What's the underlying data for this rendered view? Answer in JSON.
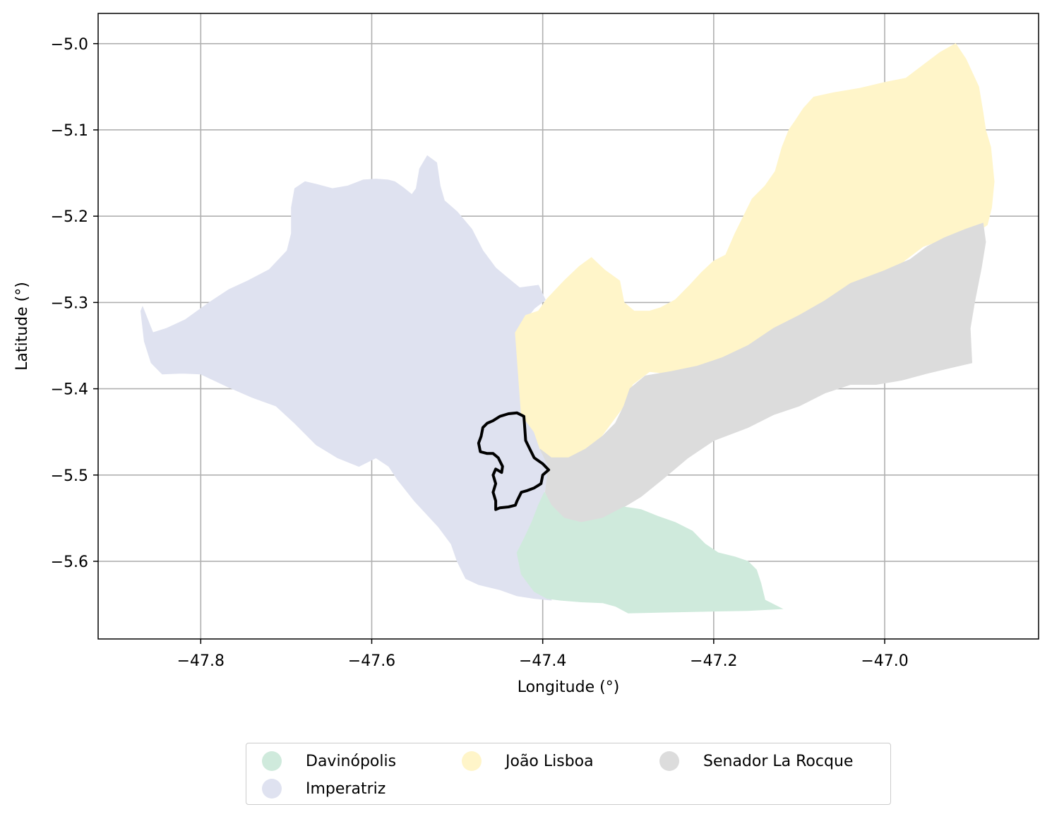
{
  "chart_data": {
    "type": "map",
    "xlabel": "Longitude (°)",
    "ylabel": "Latitude (°)",
    "xlim": [
      -47.92,
      -46.82
    ],
    "ylim": [
      -5.69,
      -4.965
    ],
    "x_ticks": [
      -47.8,
      -47.6,
      -47.4,
      -47.2,
      -47.0
    ],
    "x_tick_labels": [
      "−47.8",
      "−47.6",
      "−47.4",
      "−47.2",
      "−47.0"
    ],
    "y_ticks": [
      -5.0,
      -5.1,
      -5.2,
      -5.3,
      -5.4,
      -5.5,
      -5.6
    ],
    "y_tick_labels": [
      "−5.0",
      "−5.1",
      "−5.2",
      "−5.3",
      "−5.4",
      "−5.5",
      "−5.6"
    ],
    "grid": true,
    "legend_placement": "bottom-center",
    "regions": [
      {
        "name": "Imperatriz",
        "color": "#dfe2f0",
        "outline": [
          [
            -47.868,
            -5.305
          ],
          [
            -47.856,
            -5.335
          ],
          [
            -47.84,
            -5.33
          ],
          [
            -47.818,
            -5.32
          ],
          [
            -47.79,
            -5.3
          ],
          [
            -47.767,
            -5.285
          ],
          [
            -47.745,
            -5.275
          ],
          [
            -47.72,
            -5.262
          ],
          [
            -47.699,
            -5.24
          ],
          [
            -47.694,
            -5.22
          ],
          [
            -47.694,
            -5.19
          ],
          [
            -47.69,
            -5.168
          ],
          [
            -47.678,
            -5.16
          ],
          [
            -47.665,
            -5.163
          ],
          [
            -47.646,
            -5.168
          ],
          [
            -47.628,
            -5.165
          ],
          [
            -47.61,
            -5.158
          ],
          [
            -47.595,
            -5.157
          ],
          [
            -47.581,
            -5.158
          ],
          [
            -47.573,
            -5.16
          ],
          [
            -47.563,
            -5.167
          ],
          [
            -47.553,
            -5.175
          ],
          [
            -47.548,
            -5.168
          ],
          [
            -47.544,
            -5.145
          ],
          [
            -47.535,
            -5.13
          ],
          [
            -47.524,
            -5.138
          ],
          [
            -47.52,
            -5.165
          ],
          [
            -47.515,
            -5.182
          ],
          [
            -47.5,
            -5.195
          ],
          [
            -47.483,
            -5.215
          ],
          [
            -47.47,
            -5.24
          ],
          [
            -47.455,
            -5.26
          ],
          [
            -47.443,
            -5.27
          ],
          [
            -47.427,
            -5.283
          ],
          [
            -47.405,
            -5.28
          ],
          [
            -47.397,
            -5.297
          ],
          [
            -47.41,
            -5.307
          ],
          [
            -47.432,
            -5.335
          ],
          [
            -47.428,
            -5.39
          ],
          [
            -47.425,
            -5.43
          ],
          [
            -47.41,
            -5.45
          ],
          [
            -47.403,
            -5.47
          ],
          [
            -47.393,
            -5.49
          ],
          [
            -47.398,
            -5.52
          ],
          [
            -47.4,
            -5.56
          ],
          [
            -47.395,
            -5.62
          ],
          [
            -47.39,
            -5.645
          ],
          [
            -47.41,
            -5.643
          ],
          [
            -47.43,
            -5.64
          ],
          [
            -47.45,
            -5.633
          ],
          [
            -47.475,
            -5.627
          ],
          [
            -47.49,
            -5.62
          ],
          [
            -47.5,
            -5.6
          ],
          [
            -47.507,
            -5.58
          ],
          [
            -47.522,
            -5.56
          ],
          [
            -47.55,
            -5.53
          ],
          [
            -47.57,
            -5.505
          ],
          [
            -47.58,
            -5.49
          ],
          [
            -47.595,
            -5.48
          ],
          [
            -47.615,
            -5.49
          ],
          [
            -47.64,
            -5.48
          ],
          [
            -47.665,
            -5.465
          ],
          [
            -47.69,
            -5.44
          ],
          [
            -47.712,
            -5.42
          ],
          [
            -47.74,
            -5.41
          ],
          [
            -47.77,
            -5.397
          ],
          [
            -47.8,
            -5.383
          ],
          [
            -47.822,
            -5.382
          ],
          [
            -47.845,
            -5.383
          ],
          [
            -47.858,
            -5.37
          ],
          [
            -47.866,
            -5.345
          ],
          [
            -47.87,
            -5.31
          ]
        ]
      },
      {
        "name": "João Lisboa",
        "color": "#fff5c9",
        "outline": [
          [
            -47.432,
            -5.335
          ],
          [
            -47.42,
            -5.315
          ],
          [
            -47.405,
            -5.31
          ],
          [
            -47.395,
            -5.296
          ],
          [
            -47.375,
            -5.275
          ],
          [
            -47.357,
            -5.258
          ],
          [
            -47.343,
            -5.248
          ],
          [
            -47.328,
            -5.262
          ],
          [
            -47.31,
            -5.275
          ],
          [
            -47.305,
            -5.3
          ],
          [
            -47.293,
            -5.31
          ],
          [
            -47.275,
            -5.31
          ],
          [
            -47.262,
            -5.306
          ],
          [
            -47.245,
            -5.297
          ],
          [
            -47.228,
            -5.28
          ],
          [
            -47.214,
            -5.265
          ],
          [
            -47.2,
            -5.252
          ],
          [
            -47.186,
            -5.245
          ],
          [
            -47.175,
            -5.22
          ],
          [
            -47.165,
            -5.2
          ],
          [
            -47.155,
            -5.18
          ],
          [
            -47.14,
            -5.165
          ],
          [
            -47.128,
            -5.148
          ],
          [
            -47.12,
            -5.12
          ],
          [
            -47.112,
            -5.1
          ],
          [
            -47.105,
            -5.09
          ],
          [
            -47.095,
            -5.075
          ],
          [
            -47.083,
            -5.062
          ],
          [
            -47.06,
            -5.057
          ],
          [
            -47.03,
            -5.052
          ],
          [
            -47.0,
            -5.045
          ],
          [
            -46.975,
            -5.04
          ],
          [
            -46.955,
            -5.025
          ],
          [
            -46.935,
            -5.01
          ],
          [
            -46.917,
            -5.0
          ],
          [
            -46.905,
            -5.018
          ],
          [
            -46.89,
            -5.05
          ],
          [
            -46.885,
            -5.08
          ],
          [
            -46.882,
            -5.1
          ],
          [
            -46.876,
            -5.12
          ],
          [
            -46.872,
            -5.16
          ],
          [
            -46.875,
            -5.19
          ],
          [
            -46.88,
            -5.21
          ],
          [
            -46.895,
            -5.22
          ],
          [
            -46.92,
            -5.225
          ],
          [
            -46.94,
            -5.23
          ],
          [
            -46.955,
            -5.235
          ],
          [
            -46.975,
            -5.25
          ],
          [
            -47.0,
            -5.272
          ],
          [
            -47.025,
            -5.29
          ],
          [
            -47.05,
            -5.307
          ],
          [
            -47.07,
            -5.32
          ],
          [
            -47.095,
            -5.335
          ],
          [
            -47.12,
            -5.35
          ],
          [
            -47.15,
            -5.37
          ],
          [
            -47.19,
            -5.38
          ],
          [
            -47.23,
            -5.385
          ],
          [
            -47.275,
            -5.38
          ],
          [
            -47.295,
            -5.395
          ],
          [
            -47.305,
            -5.42
          ],
          [
            -47.32,
            -5.44
          ],
          [
            -47.335,
            -5.46
          ],
          [
            -47.355,
            -5.475
          ],
          [
            -47.37,
            -5.48
          ],
          [
            -47.385,
            -5.485
          ],
          [
            -47.403,
            -5.47
          ],
          [
            -47.41,
            -5.45
          ],
          [
            -47.425,
            -5.43
          ],
          [
            -47.428,
            -5.39
          ]
        ]
      },
      {
        "name": "Senador La Rocque",
        "color": "#dcdcdc",
        "outline": [
          [
            -47.403,
            -5.47
          ],
          [
            -47.39,
            -5.48
          ],
          [
            -47.37,
            -5.48
          ],
          [
            -47.35,
            -5.47
          ],
          [
            -47.33,
            -5.455
          ],
          [
            -47.315,
            -5.44
          ],
          [
            -47.305,
            -5.42
          ],
          [
            -47.298,
            -5.4
          ],
          [
            -47.28,
            -5.385
          ],
          [
            -47.25,
            -5.38
          ],
          [
            -47.22,
            -5.374
          ],
          [
            -47.19,
            -5.364
          ],
          [
            -47.16,
            -5.35
          ],
          [
            -47.13,
            -5.33
          ],
          [
            -47.1,
            -5.315
          ],
          [
            -47.07,
            -5.298
          ],
          [
            -47.04,
            -5.278
          ],
          [
            -47.0,
            -5.263
          ],
          [
            -46.97,
            -5.25
          ],
          [
            -46.95,
            -5.235
          ],
          [
            -46.93,
            -5.225
          ],
          [
            -46.905,
            -5.215
          ],
          [
            -46.885,
            -5.208
          ],
          [
            -46.882,
            -5.23
          ],
          [
            -46.887,
            -5.26
          ],
          [
            -46.895,
            -5.3
          ],
          [
            -46.9,
            -5.33
          ],
          [
            -46.898,
            -5.37
          ],
          [
            -46.92,
            -5.375
          ],
          [
            -46.95,
            -5.382
          ],
          [
            -46.98,
            -5.39
          ],
          [
            -47.01,
            -5.395
          ],
          [
            -47.04,
            -5.395
          ],
          [
            -47.07,
            -5.405
          ],
          [
            -47.1,
            -5.42
          ],
          [
            -47.13,
            -5.43
          ],
          [
            -47.16,
            -5.445
          ],
          [
            -47.2,
            -5.46
          ],
          [
            -47.23,
            -5.48
          ],
          [
            -47.26,
            -5.505
          ],
          [
            -47.285,
            -5.525
          ],
          [
            -47.305,
            -5.537
          ],
          [
            -47.33,
            -5.55
          ],
          [
            -47.355,
            -5.555
          ],
          [
            -47.375,
            -5.55
          ],
          [
            -47.39,
            -5.535
          ],
          [
            -47.397,
            -5.52
          ],
          [
            -47.393,
            -5.49
          ]
        ]
      },
      {
        "name": "Davinópolis",
        "color": "#cfeadc",
        "outline": [
          [
            -47.398,
            -5.52
          ],
          [
            -47.39,
            -5.535
          ],
          [
            -47.375,
            -5.55
          ],
          [
            -47.355,
            -5.555
          ],
          [
            -47.33,
            -5.55
          ],
          [
            -47.305,
            -5.537
          ],
          [
            -47.285,
            -5.54
          ],
          [
            -47.265,
            -5.548
          ],
          [
            -47.245,
            -5.555
          ],
          [
            -47.225,
            -5.565
          ],
          [
            -47.21,
            -5.58
          ],
          [
            -47.195,
            -5.59
          ],
          [
            -47.175,
            -5.595
          ],
          [
            -47.16,
            -5.6
          ],
          [
            -47.15,
            -5.61
          ],
          [
            -47.145,
            -5.625
          ],
          [
            -47.14,
            -5.645
          ],
          [
            -47.12,
            -5.655
          ],
          [
            -47.16,
            -5.657
          ],
          [
            -47.21,
            -5.658
          ],
          [
            -47.26,
            -5.659
          ],
          [
            -47.3,
            -5.66
          ],
          [
            -47.315,
            -5.652
          ],
          [
            -47.33,
            -5.648
          ],
          [
            -47.355,
            -5.647
          ],
          [
            -47.38,
            -5.645
          ],
          [
            -47.395,
            -5.643
          ],
          [
            -47.41,
            -5.635
          ],
          [
            -47.425,
            -5.615
          ],
          [
            -47.43,
            -5.59
          ],
          [
            -47.42,
            -5.57
          ],
          [
            -47.412,
            -5.553
          ],
          [
            -47.405,
            -5.535
          ]
        ]
      }
    ],
    "highlight_boundary": {
      "color": "#000000",
      "outline": [
        [
          -47.43,
          -5.428
        ],
        [
          -47.422,
          -5.432
        ],
        [
          -47.421,
          -5.445
        ],
        [
          -47.42,
          -5.46
        ],
        [
          -47.415,
          -5.47
        ],
        [
          -47.41,
          -5.48
        ],
        [
          -47.4,
          -5.487
        ],
        [
          -47.393,
          -5.494
        ],
        [
          -47.4,
          -5.5
        ],
        [
          -47.402,
          -5.51
        ],
        [
          -47.41,
          -5.515
        ],
        [
          -47.418,
          -5.518
        ],
        [
          -47.425,
          -5.52
        ],
        [
          -47.43,
          -5.53
        ],
        [
          -47.432,
          -5.535
        ],
        [
          -47.44,
          -5.537
        ],
        [
          -47.45,
          -5.538
        ],
        [
          -47.455,
          -5.54
        ],
        [
          -47.455,
          -5.53
        ],
        [
          -47.458,
          -5.52
        ],
        [
          -47.455,
          -5.51
        ],
        [
          -47.458,
          -5.5
        ],
        [
          -47.455,
          -5.493
        ],
        [
          -47.448,
          -5.497
        ],
        [
          -47.447,
          -5.49
        ],
        [
          -47.452,
          -5.48
        ],
        [
          -47.458,
          -5.475
        ],
        [
          -47.465,
          -5.475
        ],
        [
          -47.473,
          -5.473
        ],
        [
          -47.475,
          -5.463
        ],
        [
          -47.472,
          -5.455
        ],
        [
          -47.47,
          -5.445
        ],
        [
          -47.465,
          -5.44
        ],
        [
          -47.458,
          -5.437
        ],
        [
          -47.45,
          -5.432
        ],
        [
          -47.44,
          -5.429
        ]
      ]
    }
  }
}
